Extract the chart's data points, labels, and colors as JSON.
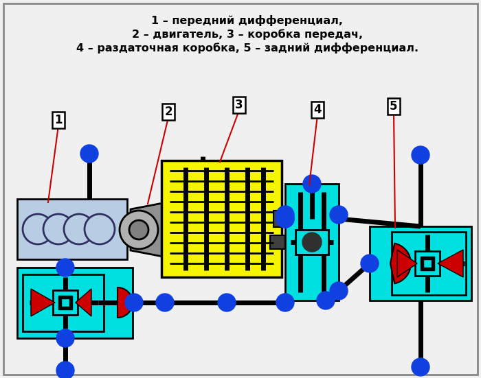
{
  "legend_line1": "1 – передний дифференциал,",
  "legend_line2": "2 – двигатель, 3 – коробка передач,",
  "legend_line3": "4 – раздаточная коробка, 5 – задний дифференциал.",
  "bg": "#f0f0f0",
  "cyan": "#00e0e0",
  "yellow": "#f5f500",
  "blue": "#1040e0",
  "red": "#cc0000",
  "black": "#000000",
  "engine_gray": "#b8cce4",
  "clutch_gray": "#909090",
  "white": "#ffffff"
}
